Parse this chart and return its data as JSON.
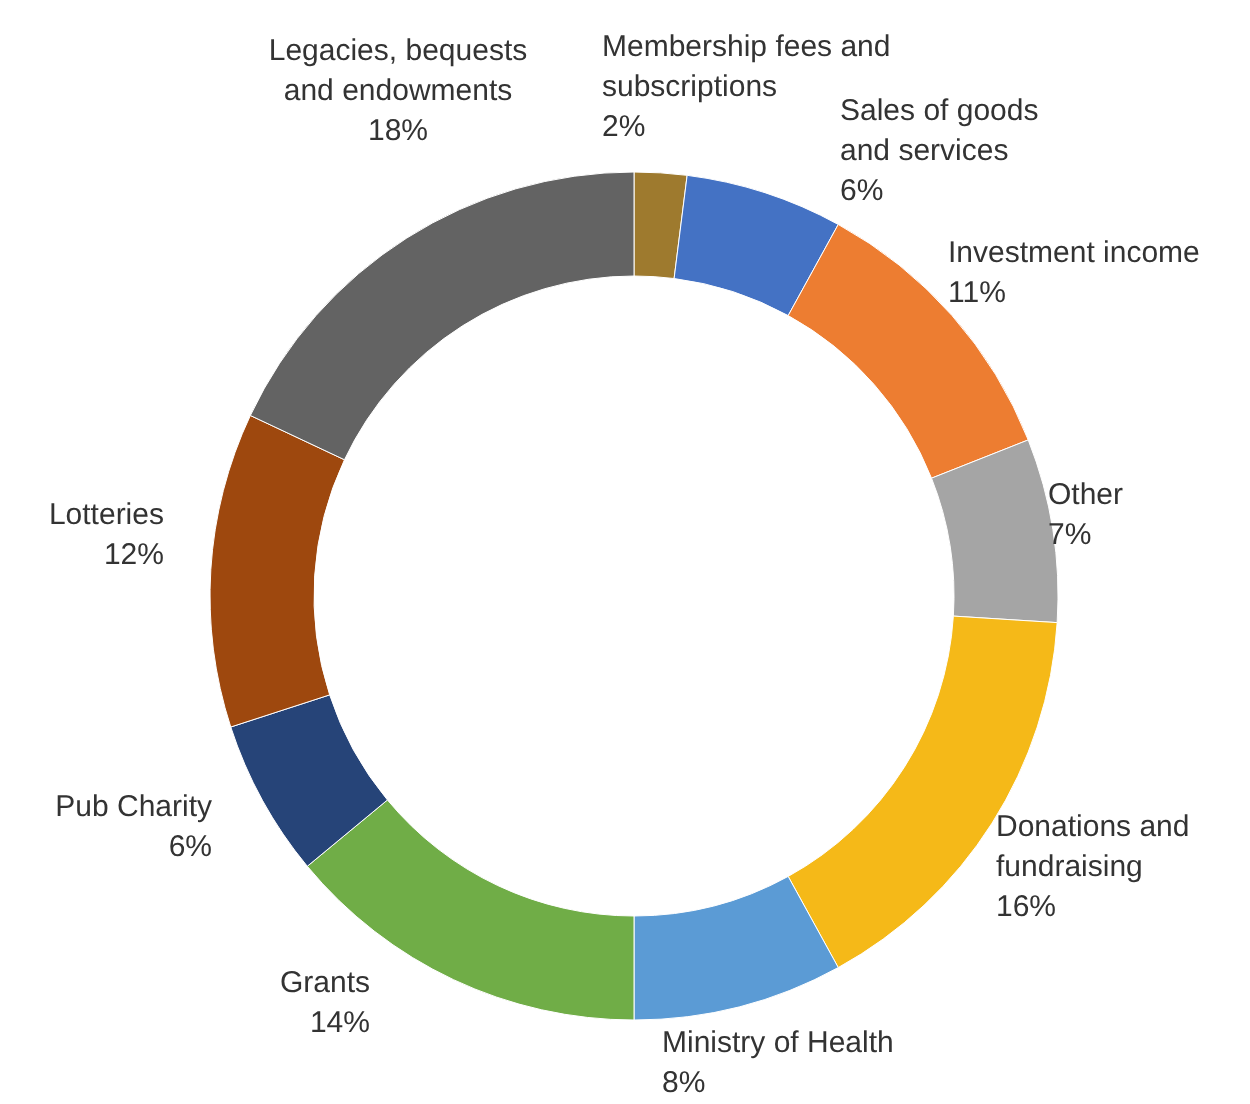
{
  "chart_data": {
    "type": "donut",
    "categories": [
      "Membership fees and subscriptions",
      "Sales of goods and services",
      "Investment income",
      "Other",
      "Donations and fundraising",
      "Ministry of Health",
      "Grants",
      "Pub Charity",
      "Lotteries",
      "Legacies, bequests and endowments"
    ],
    "values": [
      2,
      6,
      11,
      7,
      16,
      8,
      14,
      6,
      12,
      18
    ],
    "value_labels": [
      "2%",
      "6%",
      "11%",
      "7%",
      "16%",
      "8%",
      "14%",
      "6%",
      "12%",
      "18%"
    ],
    "colors": [
      "#9e7a2e",
      "#4472c4",
      "#ed7d31",
      "#a5a5a5",
      "#f5b918",
      "#5b9bd5",
      "#70ad47",
      "#264478",
      "#9e480e",
      "#636363"
    ],
    "legend": false
  }
}
